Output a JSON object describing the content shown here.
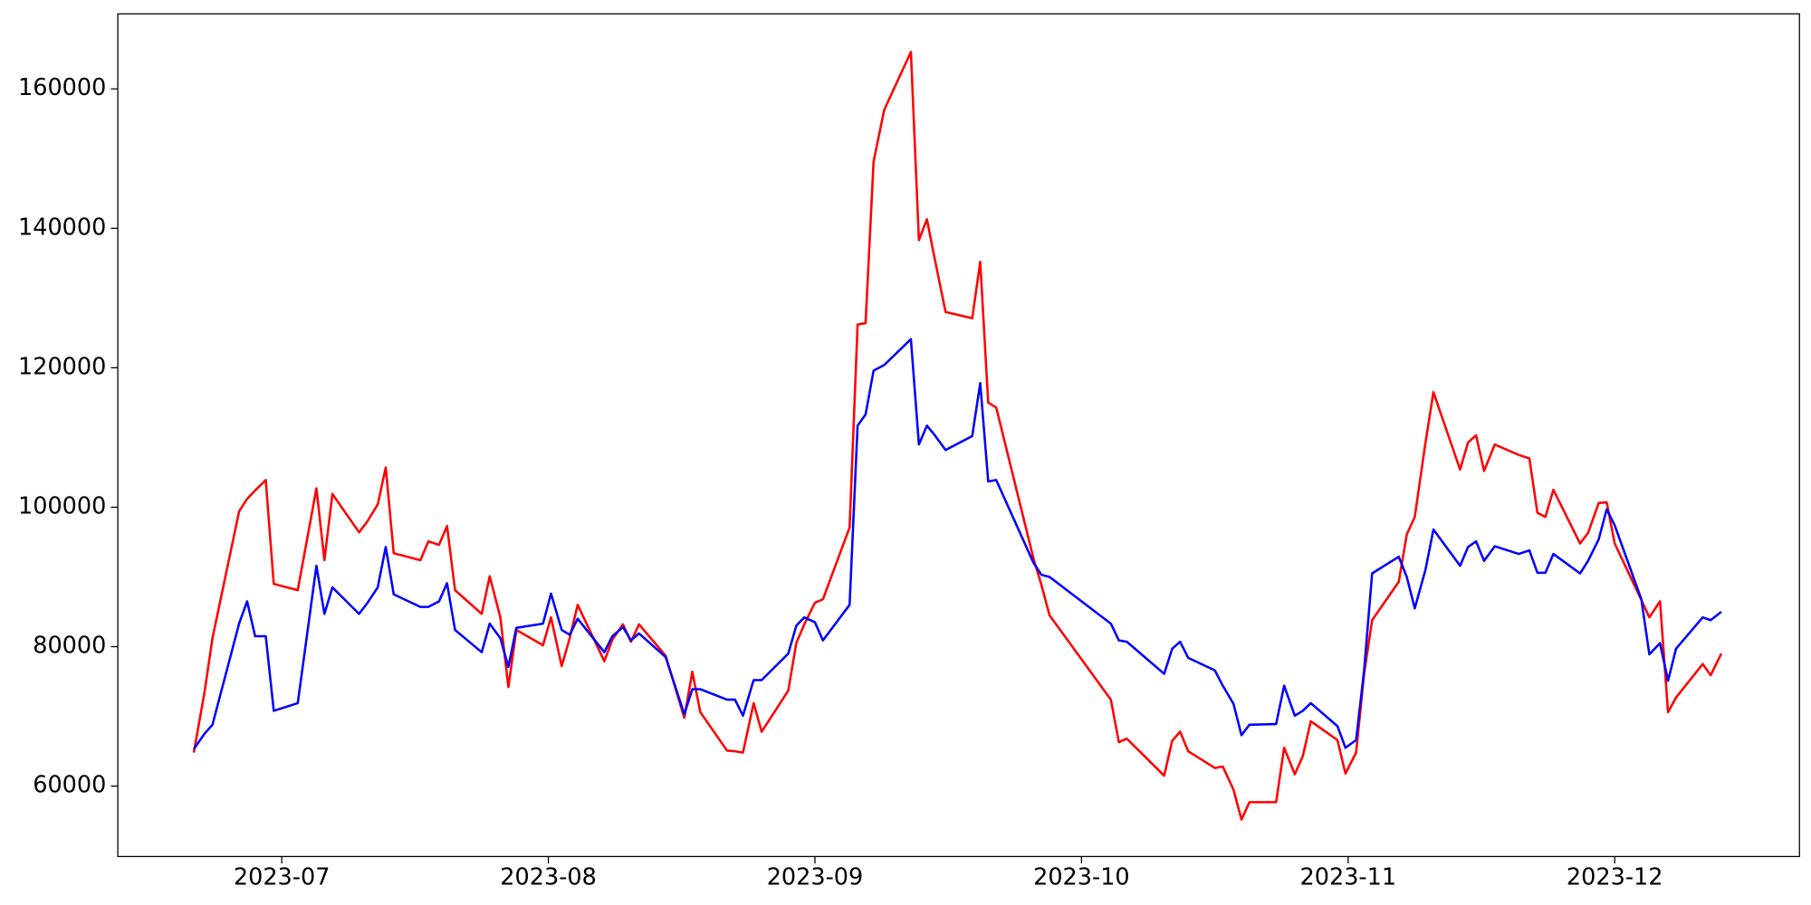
{
  "chart_data": {
    "type": "line",
    "x": [
      6.67,
      6.71,
      6.74,
      6.84,
      6.87,
      6.9,
      6.94,
      6.97,
      7.06,
      7.13,
      7.16,
      7.19,
      7.29,
      7.32,
      7.36,
      7.39,
      7.42,
      7.52,
      7.55,
      7.59,
      7.62,
      7.65,
      7.75,
      7.78,
      7.82,
      7.85,
      7.88,
      7.98,
      8.01,
      8.05,
      8.08,
      8.11,
      8.21,
      8.24,
      8.28,
      8.31,
      8.34,
      8.44,
      8.51,
      8.54,
      8.57,
      8.67,
      8.7,
      8.73,
      8.77,
      8.8,
      8.9,
      8.93,
      8.96,
      9.0,
      9.03,
      9.13,
      9.16,
      9.19,
      9.22,
      9.26,
      9.36,
      9.39,
      9.42,
      9.45,
      9.49,
      9.59,
      9.62,
      9.65,
      9.68,
      9.82,
      9.85,
      9.88,
      10.11,
      10.14,
      10.17,
      10.31,
      10.34,
      10.37,
      10.4,
      10.5,
      10.53,
      10.57,
      10.6,
      10.63,
      10.73,
      10.76,
      10.8,
      10.83,
      10.86,
      10.96,
      10.99,
      11.03,
      11.06,
      11.09,
      11.19,
      11.22,
      11.25,
      11.29,
      11.32,
      11.42,
      11.45,
      11.48,
      11.51,
      11.55,
      11.64,
      11.68,
      11.71,
      11.74,
      11.77,
      11.87,
      11.9,
      11.94,
      11.97,
      12.0,
      12.1,
      12.13,
      12.17,
      12.2,
      12.23,
      12.33,
      12.36,
      12.4
    ],
    "series": [
      {
        "color": "#ff0000",
        "values": [
          64800,
          73400,
          81200,
          99400,
          101200,
          102400,
          103900,
          89000,
          88100,
          102700,
          92400,
          101900,
          96400,
          97900,
          100400,
          105700,
          93400,
          92400,
          95100,
          94600,
          97300,
          88100,
          84700,
          90100,
          84200,
          74200,
          82400,
          80200,
          84200,
          77200,
          81200,
          86000,
          77900,
          81000,
          83200,
          80700,
          83200,
          78700,
          69800,
          76400,
          70600,
          65100,
          65000,
          64800,
          71900,
          67800,
          73700,
          80500,
          83200,
          86300,
          86800,
          97100,
          126200,
          126400,
          149600,
          157000,
          165300,
          138300,
          141300,
          135500,
          128000,
          127100,
          135200,
          115000,
          114300,
          92600,
          88800,
          84500,
          72400,
          66300,
          66800,
          61500,
          66500,
          67800,
          65000,
          62600,
          62800,
          59500,
          55200,
          57700,
          57700,
          65500,
          61700,
          64300,
          69300,
          66600,
          61800,
          64800,
          76100,
          83800,
          89300,
          96100,
          98600,
          109200,
          116500,
          105400,
          109300,
          110300,
          105200,
          109000,
          107500,
          107000,
          99200,
          98600,
          102500,
          94800,
          96300,
          100600,
          100700,
          94800,
          86700,
          84200,
          86500,
          70600,
          72700,
          77500,
          75900,
          79000
        ]
      },
      {
        "color": "#0000ff",
        "values": [
          65300,
          67500,
          68800,
          83300,
          86500,
          81500,
          81500,
          70800,
          71900,
          91600,
          84700,
          88500,
          84700,
          86200,
          88500,
          94300,
          87500,
          85700,
          85700,
          86500,
          89100,
          82400,
          79200,
          83300,
          81200,
          77100,
          82700,
          83300,
          87600,
          82400,
          81700,
          84000,
          79200,
          81500,
          82800,
          80900,
          81900,
          78500,
          70300,
          73900,
          73900,
          72400,
          72400,
          70100,
          75200,
          75200,
          79000,
          83000,
          84200,
          83500,
          80900,
          86000,
          111700,
          113300,
          119600,
          120400,
          124100,
          109000,
          111700,
          110300,
          108200,
          110200,
          117800,
          103700,
          103900,
          92000,
          90300,
          90000,
          83300,
          80900,
          80700,
          76100,
          79700,
          80700,
          78400,
          76600,
          74400,
          71800,
          67300,
          68800,
          68900,
          74400,
          70100,
          70800,
          71900,
          68600,
          65500,
          66600,
          76600,
          90500,
          92900,
          90000,
          85500,
          91000,
          96800,
          91600,
          94300,
          95100,
          92300,
          94400,
          93300,
          93800,
          90600,
          90600,
          93300,
          90500,
          92300,
          95400,
          99700,
          97400,
          86800,
          78900,
          80500,
          75100,
          79700,
          84200,
          83800,
          85000
        ]
      }
    ],
    "xlim": [
      6.385,
      12.693
    ],
    "xticks": [
      {
        "value": 7,
        "label": "2023-07"
      },
      {
        "value": 8,
        "label": "2023-08"
      },
      {
        "value": 9,
        "label": "2023-09"
      },
      {
        "value": 10,
        "label": "2023-10"
      },
      {
        "value": 11,
        "label": "2023-11"
      },
      {
        "value": 12,
        "label": "2023-12"
      }
    ],
    "ylim": [
      49900,
      170760
    ],
    "yticks": [
      60000,
      80000,
      100000,
      120000,
      140000,
      160000
    ],
    "grid": false
  }
}
